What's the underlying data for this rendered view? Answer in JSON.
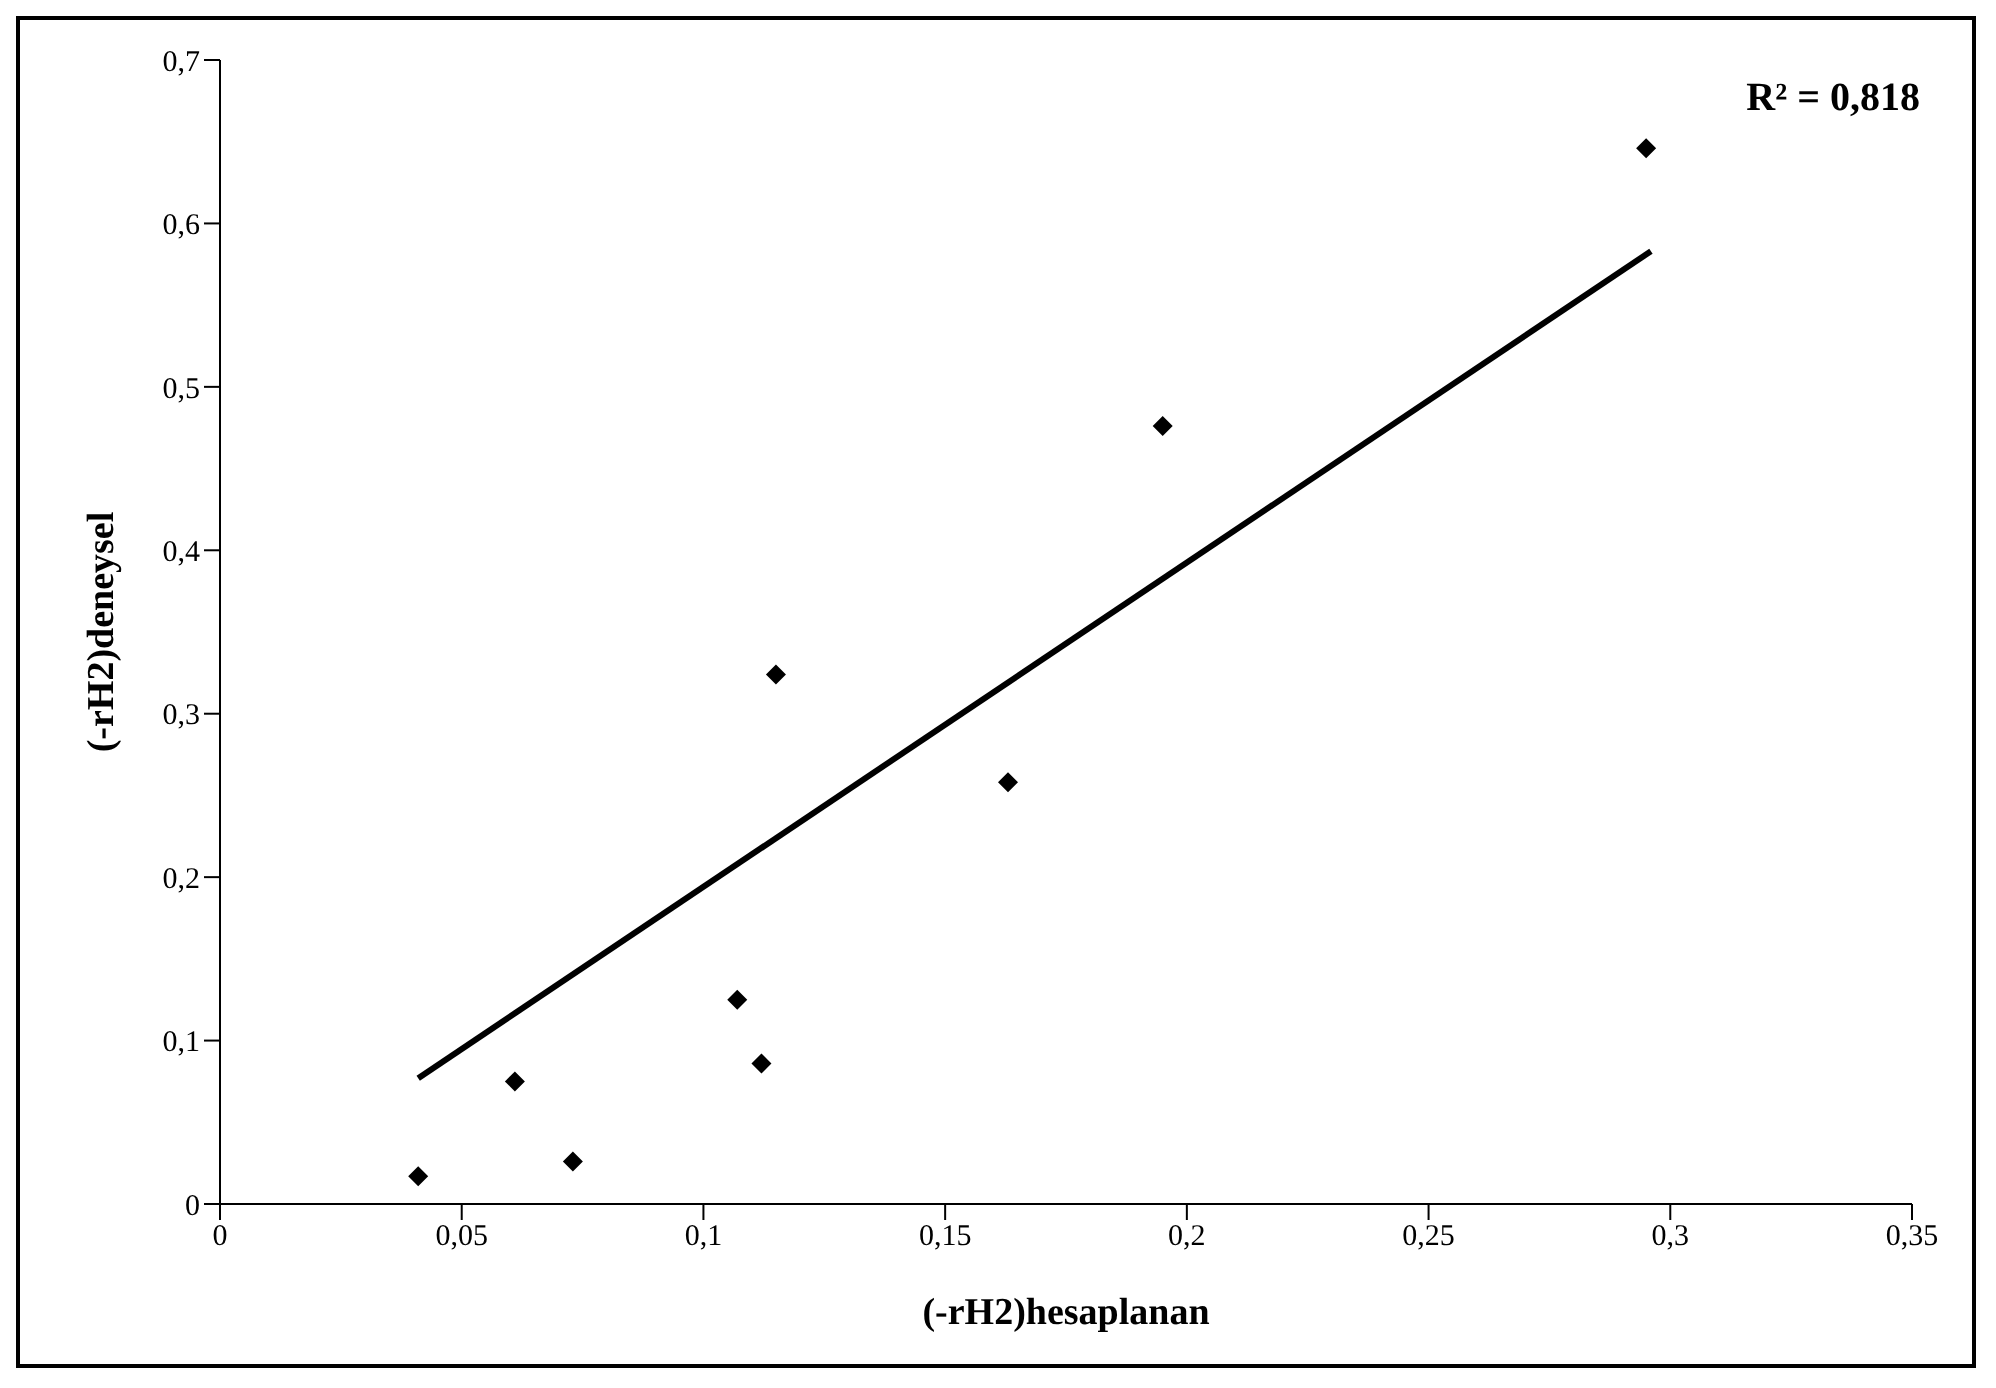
{
  "chart_data": {
    "type": "scatter",
    "xlabel": "(-rH2)hesaplanan",
    "ylabel": "(-rH2)deneysel",
    "annotations": [
      "R² = 0,818"
    ],
    "series": [
      {
        "color": "#000000",
        "marker": "diamond",
        "x": [
          0.041,
          0.061,
          0.073,
          0.107,
          0.112,
          0.115,
          0.163,
          0.195,
          0.295
        ],
        "values": [
          0.017,
          0.075,
          0.026,
          0.125,
          0.086,
          0.324,
          0.258,
          0.476,
          0.646
        ]
      },
      {
        "type": "line",
        "color": "#000000",
        "x": [
          0.041,
          0.296
        ],
        "values": [
          0.077,
          0.583
        ]
      }
    ],
    "grid": false,
    "legend": false,
    "xlim": [
      0,
      0.35
    ],
    "xticks": [
      {
        "value": 0,
        "label": "0"
      },
      {
        "value": 0.05,
        "label": "0,05"
      },
      {
        "value": 0.1,
        "label": "0,1"
      },
      {
        "value": 0.15,
        "label": "0,15"
      },
      {
        "value": 0.2,
        "label": "0,2"
      },
      {
        "value": 0.25,
        "label": "0,25"
      },
      {
        "value": 0.3,
        "label": "0,3"
      },
      {
        "value": 0.35,
        "label": "0,35"
      }
    ],
    "ylim": [
      0,
      0.7
    ],
    "yticks": [
      {
        "value": 0,
        "label": "0"
      },
      {
        "value": 0.1,
        "label": "0,1"
      },
      {
        "value": 0.2,
        "label": "0,2"
      },
      {
        "value": 0.3,
        "label": "0,3"
      },
      {
        "value": 0.4,
        "label": "0,4"
      },
      {
        "value": 0.5,
        "label": "0,5"
      },
      {
        "value": 0.6,
        "label": "0,6"
      },
      {
        "value": 0.7,
        "label": "0,7"
      }
    ]
  }
}
